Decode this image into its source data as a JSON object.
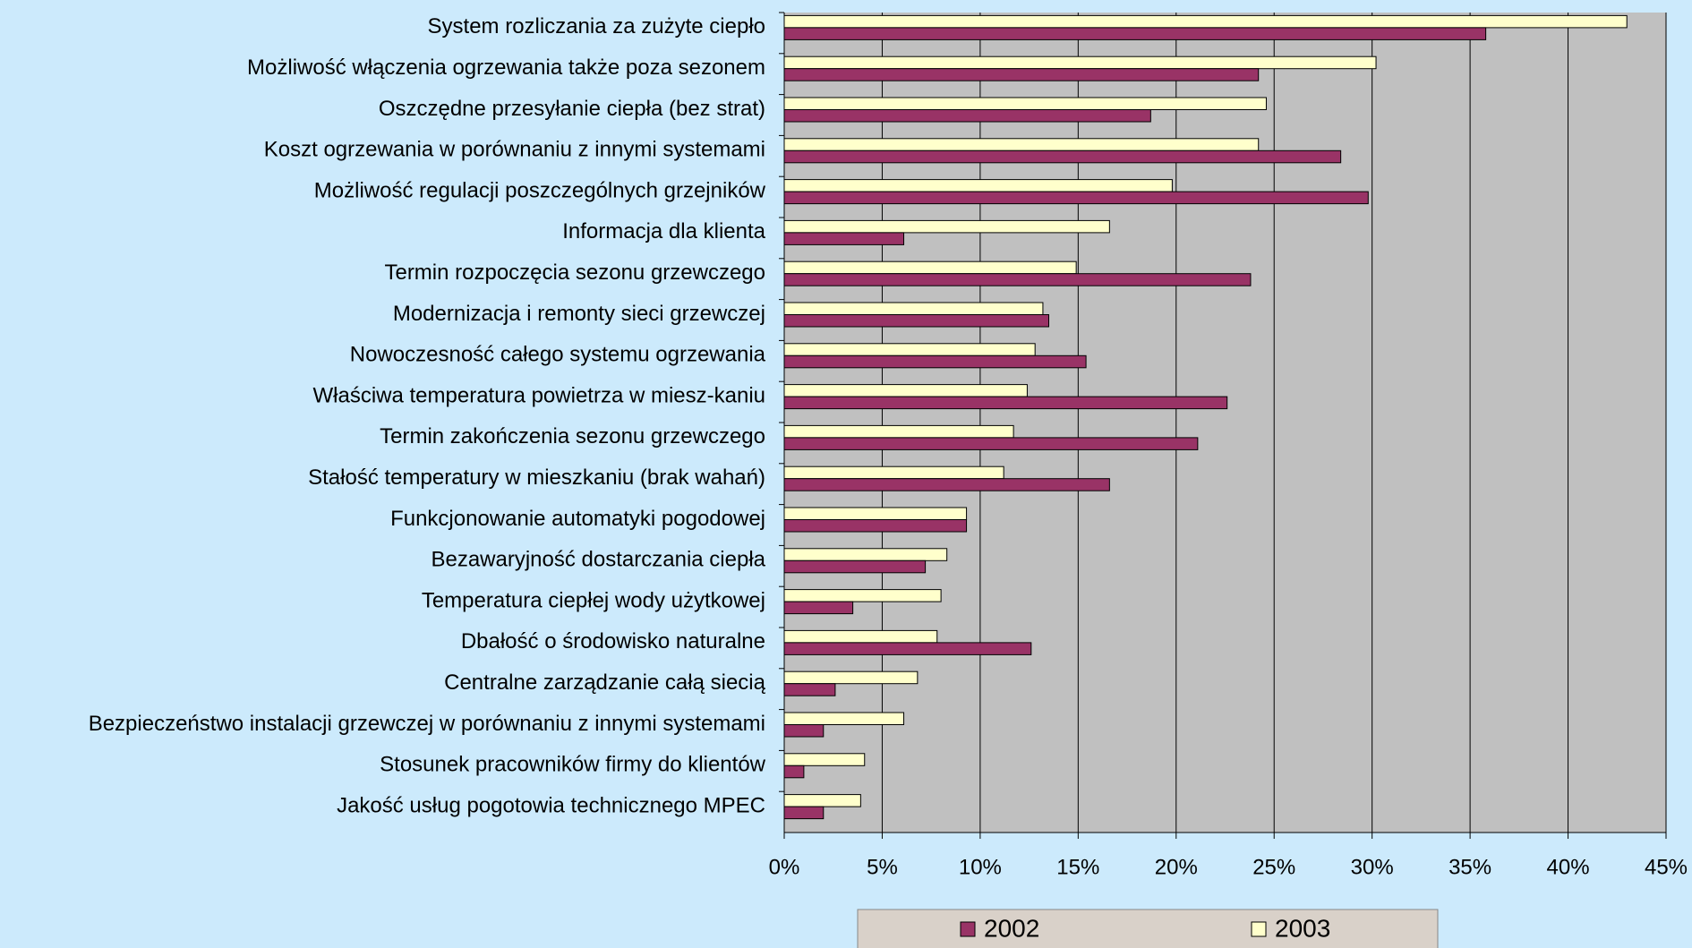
{
  "chart_data": {
    "type": "barh",
    "categories": [
      "System rozliczania za zużyte ciepło",
      "Możliwość włączenia ogrzewania także poza sezonem",
      "Oszczędne przesyłanie ciepła (bez strat)",
      "Koszt ogrzewania w porównaniu z innymi systemami",
      "Możliwość regulacji poszczególnych grzejników",
      "Informacja dla klienta",
      "Termin rozpoczęcia sezonu grzewczego",
      "Modernizacja i remonty sieci grzewczej",
      "Nowoczesność całego systemu ogrzewania",
      "Właściwa temperatura powietrza w miesz-kaniu",
      "Termin zakończenia sezonu grzewczego",
      "Stałość temperatury w mieszkaniu (brak wahań)",
      "Funkcjonowanie automatyki pogodowej",
      "Bezawaryjność dostarczania ciepła",
      "Temperatura ciepłej wody użytkowej",
      "Dbałość o środowisko naturalne",
      "Centralne zarządzanie całą siecią",
      "Bezpieczeństwo instalacji grzewczej w porównaniu z innymi systemami",
      "Stosunek pracowników firmy do klientów",
      "Jakość usług pogotowia technicznego MPEC"
    ],
    "series": [
      {
        "name": "2002",
        "color": "#993366",
        "values": [
          35.8,
          24.2,
          18.7,
          28.4,
          29.8,
          6.1,
          23.8,
          13.5,
          15.4,
          22.6,
          21.1,
          16.6,
          9.3,
          7.2,
          3.5,
          12.6,
          2.6,
          2.0,
          1.0,
          2.0
        ]
      },
      {
        "name": "2003",
        "color": "#ffffcc",
        "values": [
          43.0,
          30.2,
          24.6,
          24.2,
          19.8,
          16.6,
          14.9,
          13.2,
          12.8,
          12.4,
          11.7,
          11.2,
          9.3,
          8.3,
          8.0,
          7.8,
          6.8,
          6.1,
          4.1,
          3.9
        ]
      }
    ],
    "xlim": [
      0,
      45
    ],
    "xticks": [
      {
        "value": 0,
        "label": "0%"
      },
      {
        "value": 5,
        "label": "5%"
      },
      {
        "value": 10,
        "label": "10%"
      },
      {
        "value": 15,
        "label": "15%"
      },
      {
        "value": 20,
        "label": "20%"
      },
      {
        "value": 25,
        "label": "25%"
      },
      {
        "value": 30,
        "label": "30%"
      },
      {
        "value": 35,
        "label": "35%"
      },
      {
        "value": 40,
        "label": "40%"
      },
      {
        "value": 45,
        "label": "45%"
      }
    ],
    "grid": true,
    "legend": "bottom"
  }
}
